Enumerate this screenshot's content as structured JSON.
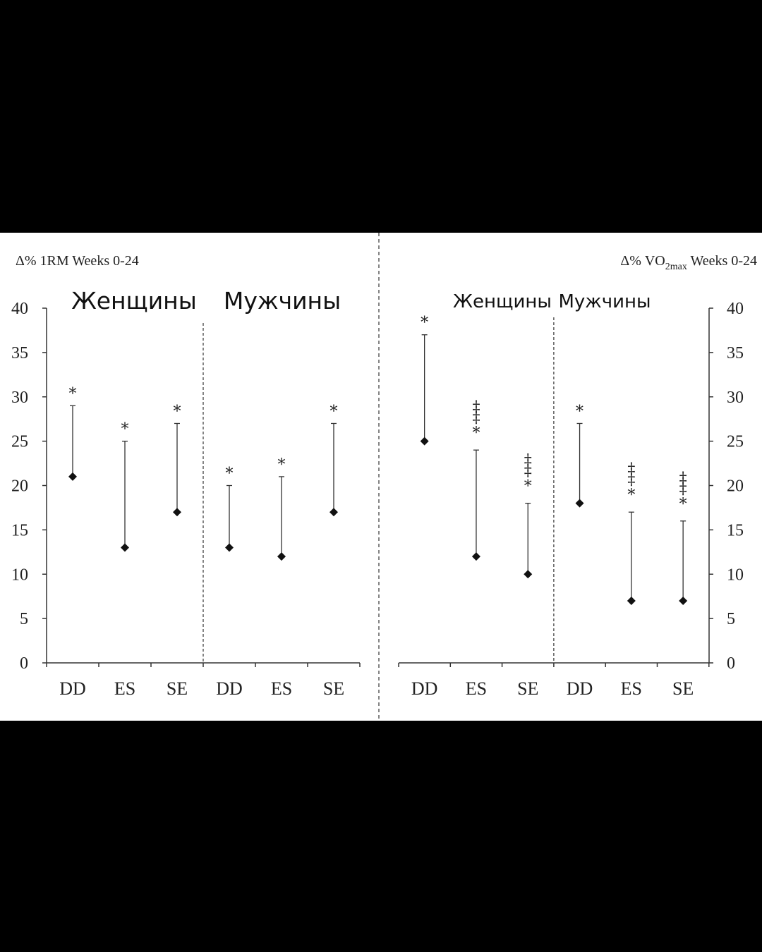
{
  "chart_data": [
    {
      "type": "scatter",
      "ylabel": "Δ% 1RM Weeks 0-24",
      "ylabel_parts": {
        "prefix": "Δ% 1RM Weeks 0-24",
        "sub": ""
      },
      "ylim": [
        0,
        40
      ],
      "yticks": [
        0,
        5,
        10,
        15,
        20,
        25,
        30,
        35,
        40
      ],
      "axis_side": "left",
      "grid": false,
      "groups": [
        {
          "label": "Женщины",
          "categories": [
            "DD",
            "ES",
            "SE"
          ],
          "means": [
            21,
            13,
            17
          ],
          "upper": [
            29,
            25,
            27
          ],
          "markers": [
            "*",
            "*",
            "*"
          ]
        },
        {
          "label": "Мужчины",
          "categories": [
            "DD",
            "ES",
            "SE"
          ],
          "means": [
            13,
            12,
            17
          ],
          "upper": [
            20,
            21,
            27
          ],
          "markers": [
            "*",
            "*",
            "*"
          ]
        }
      ]
    },
    {
      "type": "scatter",
      "ylabel": "Δ% VO2max Weeks 0-24",
      "ylabel_parts": {
        "prefix": "Δ% VO",
        "sub": "2max",
        "suffix": " Weeks 0-24"
      },
      "ylim": [
        0,
        40
      ],
      "yticks": [
        0,
        5,
        10,
        15,
        20,
        25,
        30,
        35,
        40
      ],
      "axis_side": "right",
      "grid": false,
      "groups": [
        {
          "label": "Женщины",
          "categories": [
            "DD",
            "ES",
            "SE"
          ],
          "means": [
            25,
            12,
            10
          ],
          "upper": [
            37,
            24,
            18
          ],
          "markers": [
            "*",
            "‡‡*",
            "‡‡*"
          ]
        },
        {
          "label": "Мужчины",
          "categories": [
            "DD",
            "ES",
            "SE"
          ],
          "means": [
            18,
            7,
            7
          ],
          "upper": [
            27,
            17,
            16
          ],
          "markers": [
            "*",
            "‡‡*",
            "‡‡*"
          ]
        }
      ]
    }
  ]
}
